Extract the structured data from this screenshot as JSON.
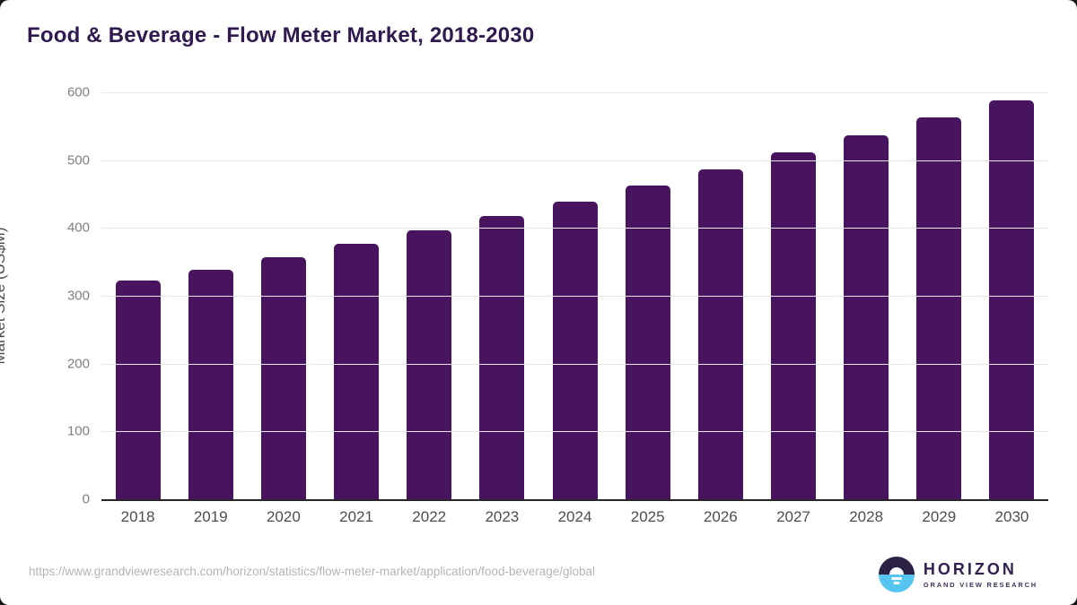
{
  "page": {
    "title": "Food & Beverage - Flow Meter Market, 2018-2030"
  },
  "chart_data": {
    "type": "bar",
    "title": "Food & Beverage - Flow Meter Market, 2018-2030",
    "categories": [
      "2018",
      "2019",
      "2020",
      "2021",
      "2022",
      "2023",
      "2024",
      "2025",
      "2026",
      "2027",
      "2028",
      "2029",
      "2030"
    ],
    "values": [
      322,
      339,
      357,
      377,
      397,
      418,
      439,
      462,
      487,
      512,
      537,
      563,
      588
    ],
    "xlabel": "",
    "ylabel": "Market Size (US$M)",
    "ylim": [
      0,
      600
    ],
    "yticks": [
      0,
      100,
      200,
      300,
      400,
      500,
      600
    ],
    "grid": "horizontal",
    "legend": "none",
    "bar_color": "#481460"
  },
  "colors": {
    "bar": "#481460",
    "title": "#311a4f",
    "gridline": "#e7e7e7",
    "axis_line": "#262626",
    "logo_dark": "#2b2145",
    "logo_blue": "#56c5f0"
  },
  "footer": {
    "source_url": "https://www.grandviewresearch.com/horizon/statistics/flow-meter-market/application/food-beverage/global",
    "logo": {
      "name": "HORIZON",
      "subtitle": "GRAND VIEW RESEARCH"
    }
  }
}
